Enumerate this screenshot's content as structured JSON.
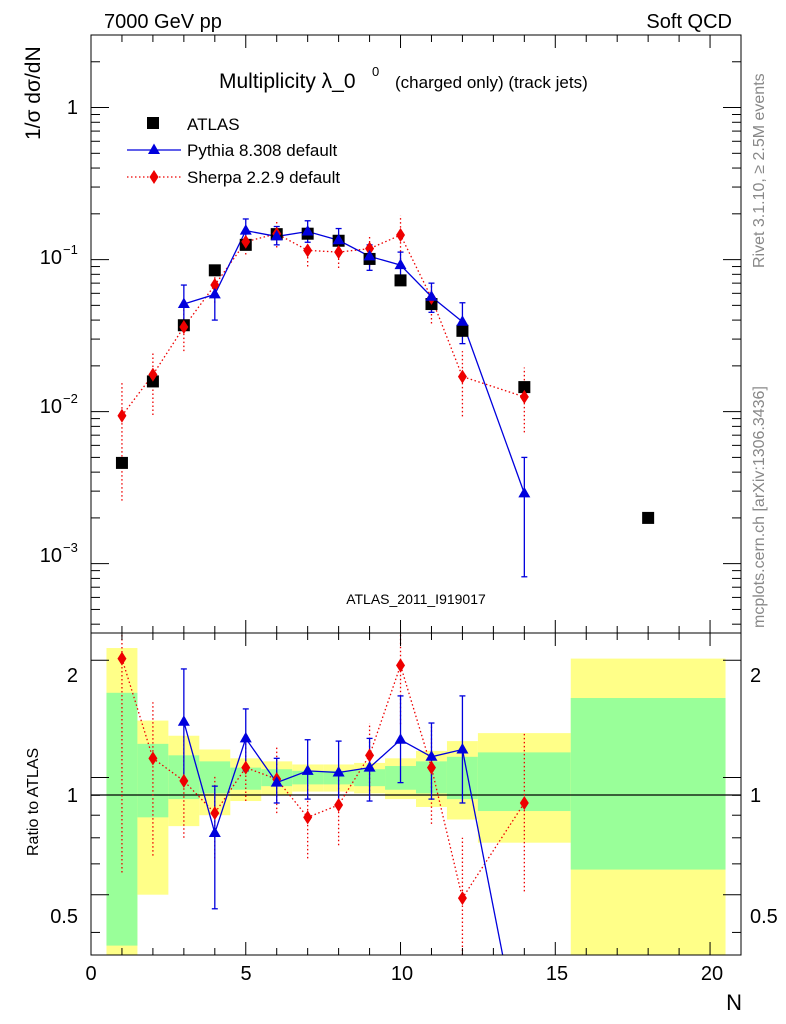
{
  "header": {
    "energy": "7000 GeV pp",
    "category": "Soft QCD"
  },
  "side_labels": {
    "rivet": "Rivet 3.1.10, ≥ 2.5M events",
    "mcplots": "mcplots.cern.ch [arXiv:1306.3436]"
  },
  "watermark": "ATLAS_2011_I919017",
  "colors": {
    "atlas": "#000000",
    "pythia": "#0000dd",
    "sherpa": "#ee0000",
    "band_inner": "#99ff99",
    "band_outer": "#ffff88"
  },
  "chart_data": [
    {
      "type": "scatter",
      "title": "Multiplicity λ_0⁰ (charged only) (track jets)",
      "title_main": "Multiplicity λ_0",
      "title_sup": "0",
      "title_tail": "(charged only) (track jets)",
      "ylabel": "1/σ dσ/dN",
      "yscale": "log",
      "ylim": [
        0.00035,
        3.0
      ],
      "xlim": [
        0,
        21
      ],
      "ytick_labels": [
        "1",
        "10",
        "10",
        "10"
      ],
      "ytick_exps": [
        "",
        "−1",
        "−2",
        "−3"
      ],
      "legend_position": "top-left",
      "series": [
        {
          "name": "ATLAS",
          "marker": "square",
          "x": [
            1,
            2,
            3,
            4,
            5,
            6,
            7,
            8,
            9,
            10,
            11,
            12,
            14,
            18
          ],
          "y": [
            0.0046,
            0.0158,
            0.037,
            0.085,
            0.125,
            0.147,
            0.148,
            0.133,
            0.101,
            0.073,
            0.051,
            0.034,
            0.0145,
            0.002
          ]
        },
        {
          "name": "Pythia 8.308 default",
          "marker": "triangle",
          "x": [
            1,
            2,
            3,
            4,
            5,
            6,
            7,
            8,
            9,
            10,
            11,
            12,
            14
          ],
          "y": [
            null,
            null,
            0.051,
            0.059,
            0.155,
            0.142,
            0.153,
            0.134,
            0.105,
            0.092,
            0.057,
            0.039,
            0.0029
          ],
          "err_lo": [
            null,
            null,
            0.036,
            0.04,
            0.13,
            0.125,
            0.13,
            0.11,
            0.085,
            0.072,
            0.045,
            0.028,
            0.00082
          ],
          "err_hi": [
            null,
            null,
            0.068,
            0.07,
            0.185,
            0.165,
            0.18,
            0.16,
            0.125,
            0.112,
            0.07,
            0.052,
            0.005
          ]
        },
        {
          "name": "Sherpa 2.2.9 default",
          "marker": "diamond",
          "x": [
            1,
            2,
            3,
            4,
            5,
            6,
            7,
            8,
            9,
            10,
            11,
            12,
            14
          ],
          "y": [
            0.0094,
            0.0175,
            0.036,
            0.068,
            0.131,
            0.148,
            0.115,
            0.112,
            0.118,
            0.145,
            0.056,
            0.017,
            0.0125
          ],
          "err_lo": [
            0.0026,
            0.0095,
            0.025,
            0.052,
            0.108,
            0.12,
            0.09,
            0.088,
            0.09,
            0.1,
            0.038,
            0.0093,
            0.0073
          ],
          "err_hi": [
            0.016,
            0.025,
            0.047,
            0.085,
            0.16,
            0.178,
            0.14,
            0.138,
            0.145,
            0.195,
            0.07,
            0.025,
            0.0195
          ]
        }
      ]
    },
    {
      "type": "scatter",
      "ylabel": "Ratio to ATLAS",
      "xlabel": "N",
      "yscale": "log",
      "ylim": [
        0.35,
        2.35
      ],
      "xlim": [
        0,
        21
      ],
      "xticks": [
        0,
        5,
        10,
        15,
        20
      ],
      "yticks": [
        0.5,
        1,
        2
      ],
      "ytick_labels": [
        "0.5",
        "1",
        "2"
      ],
      "reference_line": 1,
      "bands": [
        {
          "x0": 0.5,
          "x1": 1.5,
          "inner": [
            0.37,
            1.65
          ],
          "outer": [
            0.34,
            2.15
          ]
        },
        {
          "x0": 1.5,
          "x1": 2.5,
          "inner": [
            0.79,
            1.22
          ],
          "outer": [
            0.5,
            1.4
          ]
        },
        {
          "x0": 2.5,
          "x1": 3.5,
          "inner": [
            0.88,
            1.14
          ],
          "outer": [
            0.75,
            1.28
          ]
        },
        {
          "x0": 3.5,
          "x1": 4.5,
          "inner": [
            0.91,
            1.1
          ],
          "outer": [
            0.8,
            1.18
          ]
        },
        {
          "x0": 4.5,
          "x1": 5.5,
          "inner": [
            0.93,
            1.06
          ],
          "outer": [
            0.87,
            1.12
          ]
        },
        {
          "x0": 5.5,
          "x1": 6.5,
          "inner": [
            0.95,
            1.05
          ],
          "outer": [
            0.9,
            1.1
          ]
        },
        {
          "x0": 6.5,
          "x1": 7.5,
          "inner": [
            0.96,
            1.04
          ],
          "outer": [
            0.92,
            1.08
          ]
        },
        {
          "x0": 7.5,
          "x1": 8.5,
          "inner": [
            0.96,
            1.04
          ],
          "outer": [
            0.92,
            1.08
          ]
        },
        {
          "x0": 8.5,
          "x1": 9.5,
          "inner": [
            0.95,
            1.05
          ],
          "outer": [
            0.91,
            1.09
          ]
        },
        {
          "x0": 9.5,
          "x1": 10.5,
          "inner": [
            0.93,
            1.07
          ],
          "outer": [
            0.88,
            1.12
          ]
        },
        {
          "x0": 10.5,
          "x1": 11.5,
          "inner": [
            0.91,
            1.1
          ],
          "outer": [
            0.84,
            1.17
          ]
        },
        {
          "x0": 11.5,
          "x1": 12.5,
          "inner": [
            0.88,
            1.13
          ],
          "outer": [
            0.78,
            1.24
          ]
        },
        {
          "x0": 12.5,
          "x1": 15.5,
          "inner": [
            0.82,
            1.16
          ],
          "outer": [
            0.68,
            1.3
          ]
        },
        {
          "x0": 15.5,
          "x1": 20.5,
          "inner": [
            0.58,
            1.6
          ],
          "outer": [
            0.34,
            2.02
          ]
        }
      ],
      "series": [
        {
          "name": "Pythia 8.308 default",
          "x": [
            3,
            4,
            5,
            6,
            7,
            8,
            9,
            10,
            11,
            12,
            13.3
          ],
          "y": [
            1.39,
            0.72,
            1.26,
            0.97,
            1.04,
            1.03,
            1.06,
            1.25,
            1.13,
            1.18,
            0.35
          ],
          "err_lo": [
            0.98,
            0.46,
            1.04,
            0.86,
            0.88,
            0.85,
            0.87,
            0.97,
            0.88,
            0.86,
            null
          ],
          "err_hi": [
            1.9,
            0.95,
            1.5,
            1.12,
            1.25,
            1.24,
            1.26,
            1.62,
            1.38,
            1.62,
            null
          ]
        },
        {
          "name": "Sherpa 2.2.9 default",
          "x": [
            1,
            2,
            3,
            4,
            5,
            6,
            7,
            8,
            9,
            10,
            11,
            12,
            14
          ],
          "y": [
            2.02,
            1.12,
            0.98,
            0.81,
            1.06,
            0.99,
            0.79,
            0.85,
            1.14,
            1.94,
            1.06,
            0.49,
            0.86
          ],
          "err_lo": [
            0.57,
            0.63,
            0.7,
            0.62,
            0.87,
            0.81,
            0.62,
            0.67,
            0.88,
            1.37,
            0.76,
            0.34,
            0.51
          ],
          "err_hi": [
            3.4,
            1.56,
            1.28,
            1.01,
            1.26,
            1.2,
            0.96,
            1.05,
            1.38,
            2.6,
            1.35,
            0.7,
            1.31
          ]
        }
      ]
    }
  ]
}
